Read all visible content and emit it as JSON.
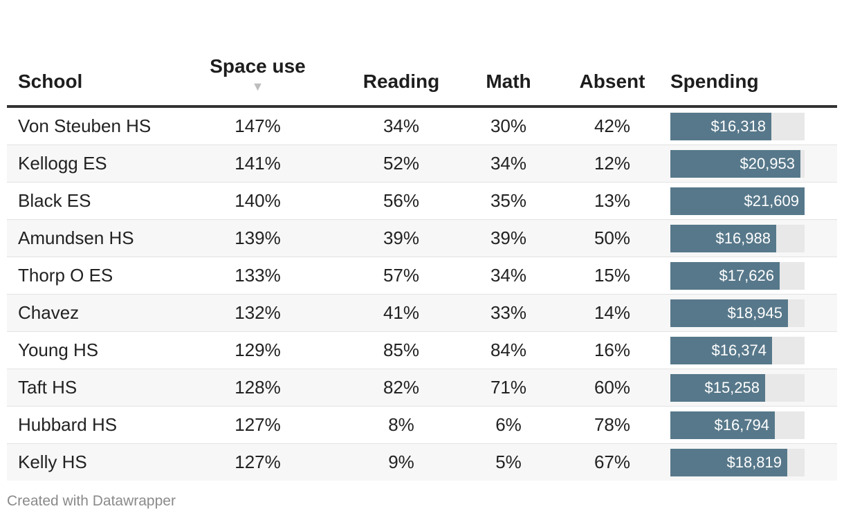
{
  "chart_data": {
    "type": "table",
    "columns": [
      {
        "key": "school",
        "label": "School"
      },
      {
        "key": "space_use",
        "label": "Space use",
        "sorted": "descending"
      },
      {
        "key": "reading",
        "label": "Reading"
      },
      {
        "key": "math",
        "label": "Math"
      },
      {
        "key": "absent",
        "label": "Absent"
      },
      {
        "key": "spending",
        "label": "Spending"
      }
    ],
    "bar_color": "#57788a",
    "bar_track_color": "#e8e8e8",
    "spending_max": 21609,
    "rows": [
      {
        "school": "Von Steuben HS",
        "space_use": "147%",
        "reading": "34%",
        "math": "30%",
        "absent": "42%",
        "spending": 16318,
        "spending_label": "$16,318"
      },
      {
        "school": "Kellogg ES",
        "space_use": "141%",
        "reading": "52%",
        "math": "34%",
        "absent": "12%",
        "spending": 20953,
        "spending_label": "$20,953"
      },
      {
        "school": "Black ES",
        "space_use": "140%",
        "reading": "56%",
        "math": "35%",
        "absent": "13%",
        "spending": 21609,
        "spending_label": "$21,609"
      },
      {
        "school": "Amundsen HS",
        "space_use": "139%",
        "reading": "39%",
        "math": "39%",
        "absent": "50%",
        "spending": 16988,
        "spending_label": "$16,988"
      },
      {
        "school": "Thorp O ES",
        "space_use": "133%",
        "reading": "57%",
        "math": "34%",
        "absent": "15%",
        "spending": 17626,
        "spending_label": "$17,626"
      },
      {
        "school": "Chavez",
        "space_use": "132%",
        "reading": "41%",
        "math": "33%",
        "absent": "14%",
        "spending": 18945,
        "spending_label": "$18,945"
      },
      {
        "school": "Young HS",
        "space_use": "129%",
        "reading": "85%",
        "math": "84%",
        "absent": "16%",
        "spending": 16374,
        "spending_label": "$16,374"
      },
      {
        "school": "Taft HS",
        "space_use": "128%",
        "reading": "82%",
        "math": "71%",
        "absent": "60%",
        "spending": 15258,
        "spending_label": "$15,258"
      },
      {
        "school": "Hubbard HS",
        "space_use": "127%",
        "reading": "8%",
        "math": "6%",
        "absent": "78%",
        "spending": 16794,
        "spending_label": "$16,794"
      },
      {
        "school": "Kelly HS",
        "space_use": "127%",
        "reading": "9%",
        "math": "5%",
        "absent": "67%",
        "spending": 18819,
        "spending_label": "$18,819"
      }
    ]
  },
  "sort_icon": "triangle-down-icon",
  "footer": {
    "credit": "Created with Datawrapper"
  }
}
